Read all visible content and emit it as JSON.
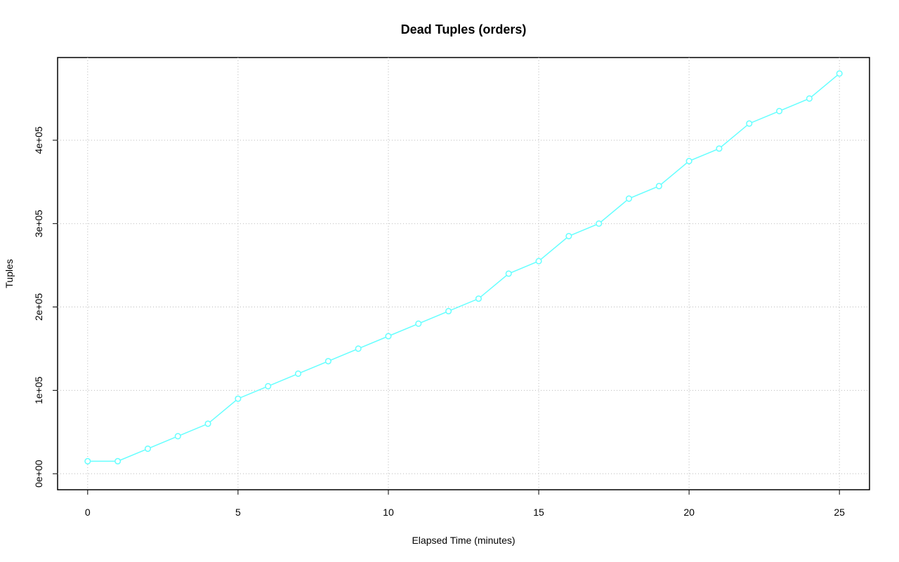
{
  "chart_data": {
    "type": "line",
    "title": "Dead Tuples (orders)",
    "x_label": "Elapsed Time (minutes)",
    "y_label": "Tuples",
    "x": [
      0,
      1,
      2,
      3,
      4,
      5,
      6,
      7,
      8,
      9,
      10,
      11,
      12,
      13,
      14,
      15,
      16,
      17,
      18,
      19,
      20,
      21,
      22,
      23,
      24,
      25
    ],
    "series": [
      {
        "name": "Tuples",
        "color": "#66ffff",
        "values": [
          15000,
          15000,
          30000,
          45000,
          60000,
          90000,
          105000,
          120000,
          135000,
          150000,
          165000,
          180000,
          195000,
          210000,
          240000,
          255000,
          285000,
          300000,
          330000,
          345000,
          375000,
          390000,
          420000,
          435000,
          450000,
          480000
        ]
      }
    ],
    "xlim": [
      -1,
      26
    ],
    "xticks": [
      0,
      5,
      10,
      15,
      20,
      25
    ],
    "ylim": [
      -19200,
      499200
    ],
    "yticks": [
      {
        "value": 0,
        "label": "0e+00"
      },
      {
        "value": 100000,
        "label": "1e+05"
      },
      {
        "value": 200000,
        "label": "2e+05"
      },
      {
        "value": 300000,
        "label": "3e+05"
      },
      {
        "value": 400000,
        "label": "4e+05"
      }
    ],
    "grid": true
  }
}
